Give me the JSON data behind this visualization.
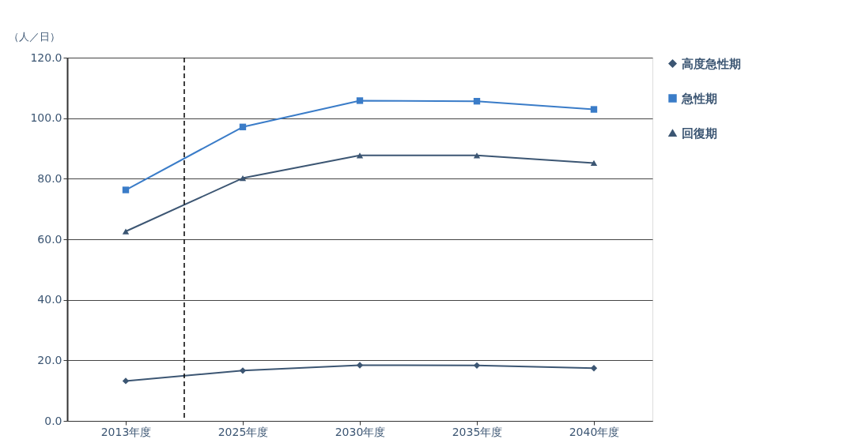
{
  "chart_data": {
    "type": "line",
    "ylabel": "（人／日）",
    "categories": [
      "2013年度",
      "2025年度",
      "2030年度",
      "2035年度",
      "2040年度"
    ],
    "series": [
      {
        "name": "高度急性期",
        "color": "#3c5673",
        "marker": "diamond",
        "values": [
          13.2,
          16.6,
          18.4,
          18.3,
          17.4
        ]
      },
      {
        "name": "急性期",
        "color": "#3a7cc8",
        "marker": "square",
        "values": [
          76.3,
          97.1,
          105.8,
          105.6,
          102.9
        ]
      },
      {
        "name": "回復期",
        "color": "#3c5673",
        "marker": "triangle",
        "values": [
          62.6,
          80.2,
          87.7,
          87.7,
          85.2
        ]
      }
    ],
    "ylim": [
      0,
      120
    ],
    "yticks": [
      {
        "value": 0,
        "label": "0.0"
      },
      {
        "value": 20,
        "label": "20.0"
      },
      {
        "value": 40,
        "label": "40.0"
      },
      {
        "value": 60,
        "label": "60.0"
      },
      {
        "value": 80,
        "label": "80.0"
      },
      {
        "value": 100,
        "label": "100.0"
      },
      {
        "value": 120,
        "label": "120.0"
      }
    ],
    "grid": "y",
    "legend": "right",
    "line_style": "solid",
    "ref_lines": [
      {
        "axis": "x",
        "value": "2013年度",
        "color": "#000000",
        "line_style": "dashed"
      }
    ]
  }
}
